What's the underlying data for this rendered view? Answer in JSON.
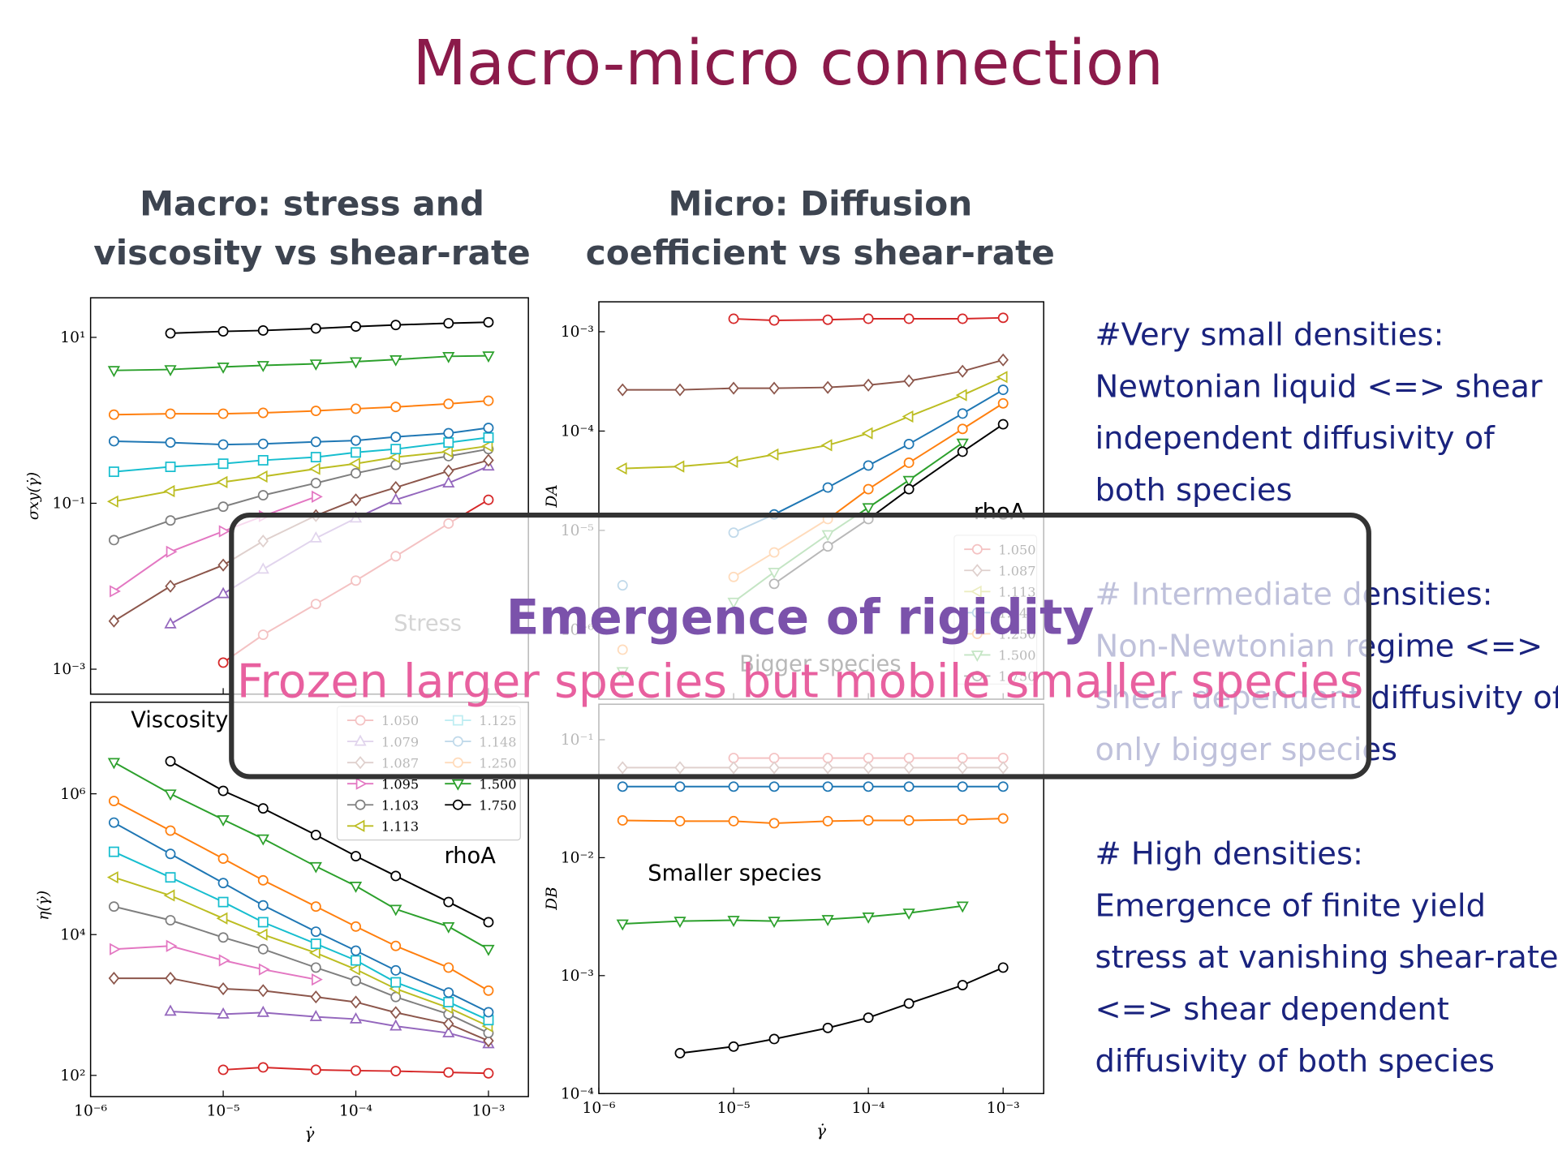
{
  "title": "Macro-micro connection",
  "columns": [
    {
      "heading": [
        "Macro: stress and",
        "viscosity vs shear-rate"
      ]
    },
    {
      "heading": [
        "Micro: Diffusion",
        "coefficient vs shear-rate"
      ]
    }
  ],
  "notes": [
    {
      "lines": [
        "#Very small densities:",
        "Newtonian liquid <=> shear",
        "independent diffusivity of",
        "both species"
      ]
    },
    {
      "lines": [
        "# Intermediate densities:",
        "Non-Newtonian regime <=>",
        "shear dependent diffusivity of",
        "only bigger species"
      ]
    },
    {
      "lines": [
        "# High densities:",
        "Emergence of finite yield",
        "stress at vanishing shear-rates",
        "<=> shear dependent",
        "diffusivity of both species"
      ]
    }
  ],
  "overlay": {
    "headline": "Emergence of rigidity",
    "subline": "Frozen larger species but mobile smaller species"
  },
  "chart_data": [
    {
      "type": "line",
      "log_x": true,
      "log_y": true,
      "label": "Stress",
      "ylabel": "σxy(γ̇)",
      "x": [
        1.5e-06,
        4e-06,
        1e-05,
        2e-05,
        5e-05,
        0.0001,
        0.0002,
        0.0005,
        0.001
      ],
      "xlim": [
        1e-06,
        0.002
      ],
      "xticks": [
        1e-06,
        1e-05,
        0.0001,
        0.001
      ],
      "ylim": [
        0.0005,
        30
      ],
      "yticks": [
        {
          "value": 0.001,
          "label": "10⁻³"
        },
        {
          "value": 0.1,
          "label": "10⁻¹"
        },
        {
          "value": 10,
          "label": "10¹"
        }
      ],
      "series": [
        {
          "color": "#d62728",
          "marker": "o",
          "values": [
            null,
            null,
            0.0012,
            0.0026,
            0.0061,
            0.0117,
            0.023,
            0.057,
            0.11
          ]
        },
        {
          "color": "#9467bd",
          "marker": "^",
          "values": [
            null,
            0.0035,
            0.0081,
            0.016,
            0.038,
            0.066,
            0.11,
            0.175,
            0.28
          ]
        },
        {
          "color": "#8c564b",
          "marker": "D",
          "values": [
            0.0038,
            0.01,
            0.018,
            0.035,
            0.071,
            0.11,
            0.155,
            0.245,
            0.33
          ]
        },
        {
          "color": "#e377c2",
          "marker": ">",
          "values": [
            0.0087,
            0.026,
            0.046,
            0.07,
            0.12,
            null,
            null,
            null,
            null
          ]
        },
        {
          "color": "#7f7f7f",
          "marker": "o",
          "values": [
            0.036,
            0.062,
            0.091,
            0.125,
            0.175,
            0.23,
            0.29,
            0.37,
            0.45
          ]
        },
        {
          "color": "#bcbd22",
          "marker": "<",
          "values": [
            0.105,
            0.14,
            0.18,
            0.21,
            0.26,
            0.3,
            0.36,
            0.42,
            0.49
          ]
        },
        {
          "color": "#17becf",
          "marker": "s",
          "values": [
            0.24,
            0.275,
            0.3,
            0.33,
            0.36,
            0.41,
            0.45,
            0.54,
            0.62
          ]
        },
        {
          "color": "#1f77b4",
          "marker": "o",
          "values": [
            0.56,
            0.54,
            0.51,
            0.52,
            0.55,
            0.57,
            0.63,
            0.7,
            0.81
          ]
        },
        {
          "color": "#ff7f0e",
          "marker": "o",
          "values": [
            1.17,
            1.2,
            1.2,
            1.23,
            1.3,
            1.38,
            1.45,
            1.58,
            1.72
          ]
        },
        {
          "color": "#2ca02c",
          "marker": "v",
          "values": [
            4.0,
            4.1,
            4.4,
            4.6,
            4.8,
            5.1,
            5.4,
            5.9,
            6.0
          ]
        },
        {
          "color": "#000000",
          "marker": "o",
          "values": [
            null,
            11.2,
            11.8,
            12.1,
            12.8,
            13.5,
            14.1,
            14.8,
            15.2
          ]
        }
      ]
    },
    {
      "type": "line",
      "log_x": true,
      "log_y": true,
      "label": "Viscosity",
      "legend": true,
      "legend_title": "rhoA",
      "ylabel": "η(γ̇)",
      "xlabel": "γ̇",
      "x": [
        1.5e-06,
        4e-06,
        1e-05,
        2e-05,
        5e-05,
        0.0001,
        0.0002,
        0.0005,
        0.001
      ],
      "xlim": [
        1e-06,
        0.002
      ],
      "xticks": [
        {
          "value": 1e-06,
          "label": "10⁻⁶"
        },
        {
          "value": 1e-05,
          "label": "10⁻⁵"
        },
        {
          "value": 0.0001,
          "label": "10⁻⁴"
        },
        {
          "value": 0.001,
          "label": "10⁻³"
        }
      ],
      "ylim": [
        50,
        20000000.0
      ],
      "yticks": [
        {
          "value": 100,
          "label": "10²"
        },
        {
          "value": 10000,
          "label": "10⁴"
        },
        {
          "value": 1000000,
          "label": "10⁶"
        }
      ],
      "series": [
        {
          "name": "1.050",
          "color": "#d62728",
          "marker": "o",
          "values": [
            null,
            null,
            120,
            130,
            120,
            117,
            115,
            110,
            107
          ]
        },
        {
          "name": "1.079",
          "color": "#9467bd",
          "marker": "^",
          "values": [
            null,
            810,
            740,
            780,
            680,
            630,
            500,
            400,
            280
          ]
        },
        {
          "name": "1.087",
          "color": "#8c564b",
          "marker": "D",
          "values": [
            2400,
            2400,
            1700,
            1600,
            1300,
            1100,
            780,
            540,
            310
          ]
        },
        {
          "name": "1.095",
          "color": "#e377c2",
          "marker": ">",
          "values": [
            6200,
            6900,
            4300,
            3200,
            2300,
            null,
            null,
            null,
            null
          ]
        },
        {
          "name": "1.103",
          "color": "#7f7f7f",
          "marker": "o",
          "values": [
            25000,
            16000,
            9100,
            6200,
            3400,
            2200,
            1300,
            740,
            400
          ]
        },
        {
          "name": "1.113",
          "color": "#bcbd22",
          "marker": "<",
          "values": [
            65000,
            36000,
            17000,
            10000,
            5500,
            3200,
            1700,
            910,
            500
          ]
        },
        {
          "name": "1.125",
          "color": "#17becf",
          "marker": "s",
          "values": [
            150000,
            65000,
            29000,
            15000,
            7400,
            4300,
            2100,
            1100,
            610
          ]
        },
        {
          "name": "1.148",
          "color": "#1f77b4",
          "marker": "o",
          "values": [
            390000,
            140000,
            54000,
            26000,
            11000,
            5900,
            3100,
            1500,
            790
          ]
        },
        {
          "name": "1.250",
          "color": "#ff7f0e",
          "marker": "o",
          "values": [
            790000,
            300000,
            120000,
            59000,
            25000,
            13000,
            6900,
            3400,
            1600
          ]
        },
        {
          "name": "1.500",
          "color": "#2ca02c",
          "marker": "v",
          "values": [
            2800000,
            1000000,
            430000,
            230000,
            93000,
            49000,
            23000,
            13000,
            6200
          ]
        },
        {
          "name": "1.750",
          "color": "#000000",
          "marker": "o",
          "values": [
            null,
            2900000,
            1100000,
            620000,
            260000,
            130000,
            68000,
            29000,
            15000
          ]
        }
      ]
    },
    {
      "type": "line",
      "log_x": true,
      "log_y": true,
      "label": "Bigger species",
      "legend": true,
      "legend_title": "rhoA",
      "ylabel": "DA",
      "x": [
        1.5e-06,
        4e-06,
        1e-05,
        2e-05,
        5e-05,
        0.0001,
        0.0002,
        0.0005,
        0.001
      ],
      "xlim": [
        1e-06,
        0.002
      ],
      "xticks": [
        1e-06,
        1e-05,
        0.0001,
        0.001
      ],
      "ylim": [
        2e-07,
        0.002
      ],
      "yticks": [
        {
          "value": 1e-06,
          "label": "10⁻⁶"
        },
        {
          "value": 1e-05,
          "label": "10⁻⁵"
        },
        {
          "value": 0.0001,
          "label": "10⁻⁴"
        },
        {
          "value": 0.001,
          "label": "10⁻³"
        }
      ],
      "series": [
        {
          "name": "1.050",
          "color": "#d62728",
          "marker": "o",
          "values": [
            null,
            null,
            0.00135,
            0.0013,
            0.00132,
            0.00135,
            0.00135,
            0.00135,
            0.00138
          ]
        },
        {
          "name": "1.087",
          "color": "#8c564b",
          "marker": "D",
          "values": [
            0.00026,
            0.00026,
            0.00027,
            0.00027,
            0.000275,
            0.00029,
            0.00032,
            0.0004,
            0.00052
          ]
        },
        {
          "name": "1.113",
          "color": "#bcbd22",
          "marker": "<",
          "values": [
            4.2e-05,
            4.4e-05,
            4.9e-05,
            5.8e-05,
            7.2e-05,
            9.5e-05,
            0.00014,
            0.00023,
            0.00035
          ]
        },
        {
          "name": "1.148",
          "color": "#1f77b4",
          "marker": "o",
          "values": [
            2.8e-06,
            null,
            9.5e-06,
            1.45e-05,
            2.7e-05,
            4.5e-05,
            7.4e-05,
            0.00015,
            0.00026
          ]
        },
        {
          "name": "1.250",
          "color": "#ff7f0e",
          "marker": "o",
          "values": [
            6.3e-07,
            null,
            3.4e-06,
            6e-06,
            1.3e-05,
            2.6e-05,
            4.8e-05,
            0.000105,
            0.00019
          ]
        },
        {
          "name": "1.500",
          "color": "#2ca02c",
          "marker": "v",
          "values": [
            3.8e-07,
            null,
            1.9e-06,
            3.8e-06,
            9.1e-06,
            1.7e-05,
            3.2e-05,
            7.6e-05,
            null
          ]
        },
        {
          "name": "1.750",
          "color": "#000000",
          "marker": "o",
          "values": [
            null,
            null,
            null,
            2.9e-06,
            6.9e-06,
            1.3e-05,
            2.6e-05,
            6.2e-05,
            0.000117
          ]
        }
      ]
    },
    {
      "type": "line",
      "log_x": true,
      "log_y": true,
      "label": "Smaller species",
      "ylabel": "DB",
      "xlabel": "γ̇",
      "x": [
        1.5e-06,
        4e-06,
        1e-05,
        2e-05,
        5e-05,
        0.0001,
        0.0002,
        0.0005,
        0.001
      ],
      "xlim": [
        1e-06,
        0.002
      ],
      "xticks": [
        {
          "value": 1e-06,
          "label": "10⁻⁶"
        },
        {
          "value": 1e-05,
          "label": "10⁻⁵"
        },
        {
          "value": 0.0001,
          "label": "10⁻⁴"
        },
        {
          "value": 0.001,
          "label": "10⁻³"
        }
      ],
      "ylim": [
        0.0001,
        0.2
      ],
      "yticks": [
        {
          "value": 0.0001,
          "label": "10⁻⁴"
        },
        {
          "value": 0.001,
          "label": "10⁻³"
        },
        {
          "value": 0.01,
          "label": "10⁻²"
        },
        {
          "value": 0.1,
          "label": "10⁻¹"
        }
      ],
      "series": [
        {
          "color": "#d62728",
          "marker": "o",
          "values": [
            null,
            null,
            0.07,
            0.07,
            0.07,
            0.07,
            0.07,
            0.07,
            0.07
          ]
        },
        {
          "color": "#8c564b",
          "marker": "D",
          "values": [
            0.058,
            0.058,
            0.058,
            0.058,
            0.058,
            0.058,
            0.058,
            0.058,
            0.058
          ]
        },
        {
          "color": "#1f77b4",
          "marker": "o",
          "values": [
            0.04,
            0.04,
            0.04,
            0.04,
            0.04,
            0.04,
            0.04,
            0.04,
            0.04
          ]
        },
        {
          "color": "#ff7f0e",
          "marker": "o",
          "values": [
            0.0207,
            0.0204,
            0.0204,
            0.0196,
            0.0204,
            0.0207,
            0.0207,
            0.021,
            0.0215
          ]
        },
        {
          "color": "#2ca02c",
          "marker": "v",
          "values": [
            0.00275,
            0.0029,
            0.00295,
            0.0029,
            0.003,
            0.00315,
            0.0034,
            0.0039,
            null
          ]
        },
        {
          "color": "#000000",
          "marker": "o",
          "values": [
            null,
            0.00022,
            0.00025,
            0.00029,
            0.00036,
            0.00044,
            0.00058,
            0.00083,
            0.00117
          ]
        }
      ]
    }
  ]
}
